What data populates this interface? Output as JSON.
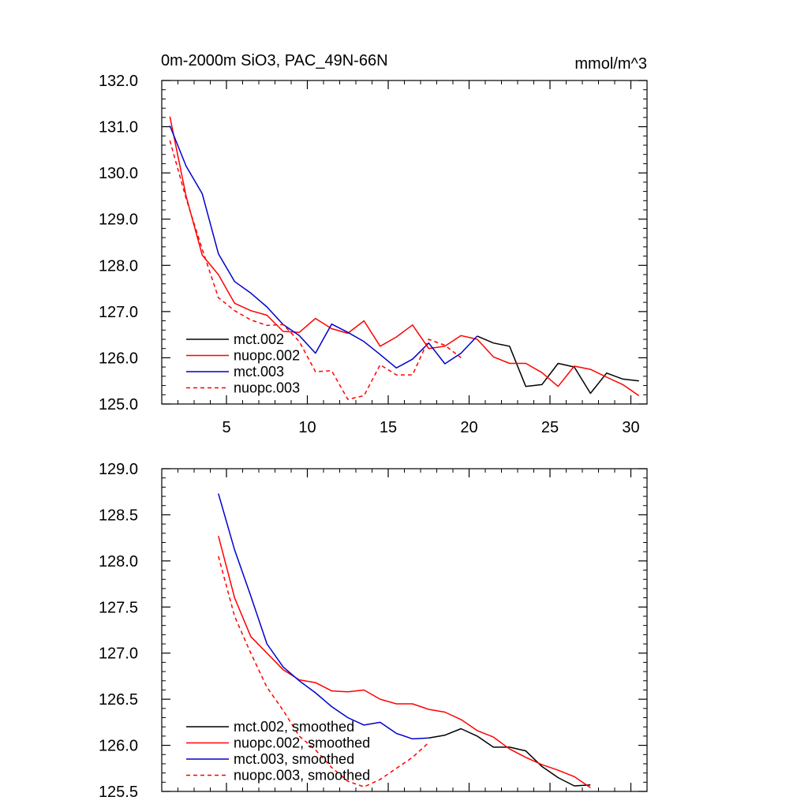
{
  "chart_data": [
    {
      "type": "line",
      "title": "0m-2000m SiO3, PAC_49N-66N",
      "units": "mmol/m^3",
      "xlim": [
        1,
        31
      ],
      "ylim": [
        125.0,
        132.0
      ],
      "x_ticks": [
        5,
        10,
        15,
        20,
        25,
        30
      ],
      "x_tick_labels": [
        "5",
        "10",
        "15",
        "20",
        "25",
        "30"
      ],
      "y_ticks": [
        125.0,
        126.0,
        127.0,
        128.0,
        129.0,
        130.0,
        131.0,
        132.0
      ],
      "y_tick_labels": [
        "125.0",
        "126.0",
        "127.0",
        "128.0",
        "129.0",
        "130.0",
        "131.0",
        "132.0"
      ],
      "legend_position": "bottom-left",
      "series": [
        {
          "name": "mct.002",
          "color": "#000000",
          "dash": "solid",
          "x": [
            20.5,
            21.5,
            22.5,
            23.5,
            24.5,
            25.5,
            26.5,
            27.5,
            28.5,
            29.5,
            30.5
          ],
          "values": [
            126.47,
            126.32,
            126.25,
            125.38,
            125.42,
            125.88,
            125.8,
            125.23,
            125.67,
            125.54,
            125.5
          ]
        },
        {
          "name": "nuopc.002",
          "color": "#ff0000",
          "dash": "solid",
          "x": [
            1.5,
            2.5,
            3.5,
            4.5,
            5.5,
            6.5,
            7.5,
            8.5,
            9.5,
            10.5,
            11.5,
            12.5,
            13.5,
            14.5,
            15.5,
            16.5,
            17.5,
            18.5,
            19.5,
            20.5,
            21.5,
            22.5,
            23.5,
            24.5,
            25.5,
            26.5,
            27.5,
            28.5,
            29.5,
            30.5
          ],
          "values": [
            131.22,
            129.5,
            128.22,
            127.8,
            127.18,
            127.02,
            126.92,
            126.57,
            126.55,
            126.85,
            126.63,
            126.53,
            126.8,
            126.25,
            126.45,
            126.71,
            126.2,
            126.25,
            126.48,
            126.4,
            126.02,
            125.88,
            125.88,
            125.68,
            125.38,
            125.82,
            125.75,
            125.58,
            125.42,
            125.18
          ]
        },
        {
          "name": "mct.003",
          "color": "#0000cc",
          "dash": "solid",
          "x": [
            1.5,
            2.5,
            3.5,
            4.5,
            5.5,
            6.5,
            7.5,
            8.5,
            9.5,
            10.5,
            11.5,
            12.5,
            13.5,
            14.5,
            15.5,
            16.5,
            17.5,
            18.5,
            19.5,
            20.5
          ],
          "values": [
            131.02,
            130.15,
            129.55,
            128.25,
            127.65,
            127.4,
            127.1,
            126.72,
            126.48,
            126.1,
            126.73,
            126.55,
            126.35,
            126.07,
            125.78,
            125.97,
            126.32,
            125.87,
            126.1,
            126.47
          ]
        },
        {
          "name": "nuopc.003",
          "color": "#ff0000",
          "dash": "dashed",
          "x": [
            1.5,
            2.5,
            3.5,
            4.5,
            5.5,
            6.5,
            7.5,
            8.5,
            9.5,
            10.5,
            11.5,
            12.5,
            13.5,
            14.5,
            15.5,
            16.5,
            17.5,
            18.5,
            19.5
          ],
          "values": [
            130.7,
            129.45,
            128.35,
            127.3,
            127.02,
            126.82,
            126.7,
            126.72,
            126.35,
            125.7,
            125.72,
            125.1,
            125.18,
            125.85,
            125.63,
            125.63,
            126.4,
            126.27,
            126.0
          ]
        }
      ]
    },
    {
      "type": "line",
      "xlim": [
        1,
        31
      ],
      "ylim": [
        125.5,
        129.0
      ],
      "x_ticks": [
        5,
        10,
        15,
        20,
        25,
        30
      ],
      "y_ticks": [
        125.5,
        126.0,
        126.5,
        127.0,
        127.5,
        128.0,
        128.5,
        129.0
      ],
      "y_tick_labels": [
        "125.5",
        "126.0",
        "126.5",
        "127.0",
        "127.5",
        "128.0",
        "128.5",
        "129.0"
      ],
      "legend_position": "bottom-left",
      "series": [
        {
          "name": "mct.002, smoothed",
          "color": "#000000",
          "dash": "solid",
          "x": [
            17.5,
            18.5,
            19.5,
            20.5,
            21.5,
            22.5,
            23.5,
            24.5,
            25.5,
            26.5,
            27.5
          ],
          "values": [
            126.08,
            126.11,
            126.18,
            126.1,
            125.98,
            125.98,
            125.94,
            125.77,
            125.65,
            125.56,
            125.57
          ]
        },
        {
          "name": "nuopc.002, smoothed",
          "color": "#ff0000",
          "dash": "solid",
          "x": [
            4.5,
            5.5,
            6.5,
            7.5,
            8.5,
            9.5,
            10.5,
            11.5,
            12.5,
            13.5,
            14.5,
            15.5,
            16.5,
            17.5,
            18.5,
            19.5,
            20.5,
            21.5,
            22.5,
            23.5,
            24.5,
            25.5,
            26.5,
            27.5
          ],
          "values": [
            128.27,
            127.6,
            127.18,
            127.0,
            126.82,
            126.71,
            126.68,
            126.59,
            126.58,
            126.6,
            126.5,
            126.45,
            126.45,
            126.39,
            126.36,
            126.28,
            126.16,
            126.09,
            125.96,
            125.87,
            125.79,
            125.73,
            125.66,
            125.54
          ]
        },
        {
          "name": "mct.003, smoothed",
          "color": "#0000cc",
          "dash": "solid",
          "x": [
            4.5,
            5.5,
            6.5,
            7.5,
            8.5,
            9.5,
            10.5,
            11.5,
            12.5,
            13.5,
            14.5,
            15.5,
            16.5,
            17.5
          ],
          "values": [
            128.73,
            128.12,
            127.62,
            127.1,
            126.85,
            126.7,
            126.57,
            126.42,
            126.3,
            126.22,
            126.25,
            126.13,
            126.07,
            126.08
          ]
        },
        {
          "name": "nuopc.003, smoothed",
          "color": "#ff0000",
          "dash": "dashed",
          "x": [
            4.5,
            5.5,
            6.5,
            7.5,
            8.5,
            9.5,
            10.5,
            11.5,
            12.5,
            13.5,
            14.5,
            15.5,
            16.5,
            17.5
          ],
          "values": [
            128.05,
            127.4,
            127.0,
            126.63,
            126.38,
            126.1,
            125.95,
            125.76,
            125.61,
            125.55,
            125.63,
            125.75,
            125.87,
            126.03
          ]
        }
      ]
    }
  ]
}
